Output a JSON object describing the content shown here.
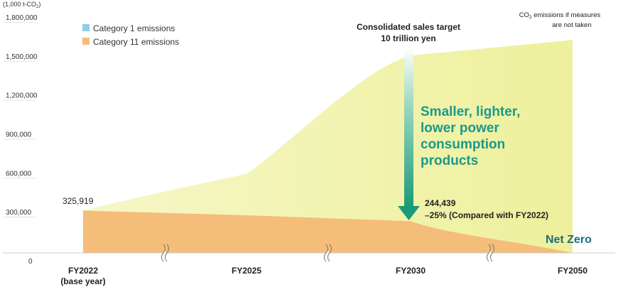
{
  "chart_data": {
    "type": "area",
    "unit_label": "(1,000 t-CO",
    "unit_label_sub": "2",
    "unit_label_end": ")",
    "yticks": [
      "1,800,000",
      "1,500,000",
      "1,200,000",
      "900,000",
      "600,000",
      "300,000",
      "0"
    ],
    "ytick_values": [
      1800000,
      1500000,
      1200000,
      900000,
      600000,
      300000,
      0
    ],
    "ylim": [
      0,
      1800000
    ],
    "categories": [
      "FY2022",
      "FY2025",
      "FY2030",
      "FY2050"
    ],
    "category_sub": [
      "(base year)",
      "",
      "",
      ""
    ],
    "series": [
      {
        "name": "Category 1 emissions",
        "values": [
          0,
          0,
          0,
          0
        ],
        "color": "#8fcde8"
      },
      {
        "name": "Category 11 emissions",
        "values": [
          325919,
          290000,
          244439,
          0
        ],
        "color": "#f5bd7a"
      },
      {
        "name": "CO2 emissions if measures are not taken",
        "values": [
          325919,
          610000,
          1520000,
          1640000
        ],
        "color": "#f3f4b4"
      }
    ],
    "annotations": {
      "base_value": "325,919",
      "target_line1": "Consolidated sales target",
      "target_line2": "10 trillion yen",
      "no_measures_line1_a": "CO",
      "no_measures_line1_sub": "2",
      "no_measures_line1_b": " emissions if measures",
      "no_measures_line2": "are not taken",
      "arrow_text": [
        "Smaller, lighter,",
        "lower power",
        "consumption",
        "products"
      ],
      "reduction_value": "244,439",
      "reduction_note": "–25% (Compared with FY2022)",
      "net_zero": "Net Zero"
    },
    "colors": {
      "accent_green": "#1a9a8a",
      "net_zero": "#1c6e7e",
      "axis": "#cccccc"
    }
  }
}
